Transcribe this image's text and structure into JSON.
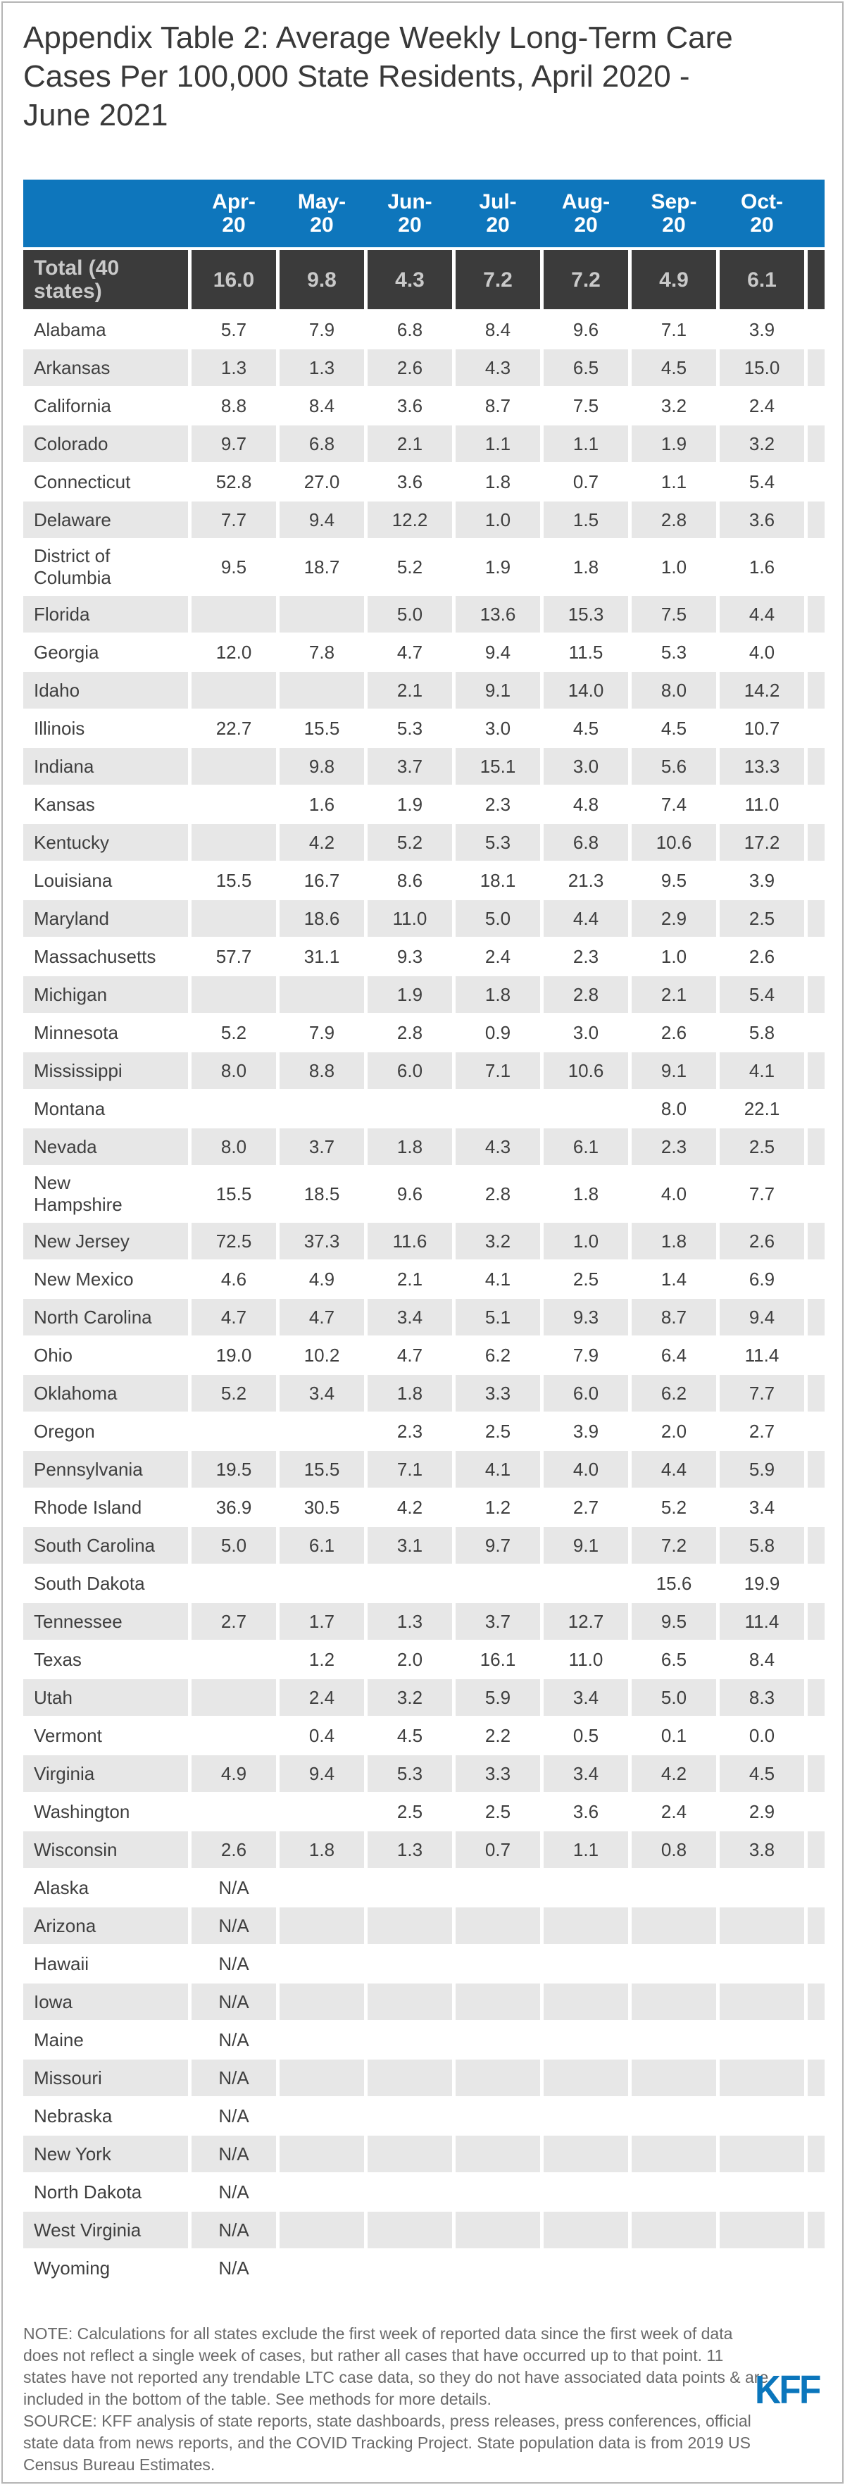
{
  "title": "Appendix Table 2: Average Weekly Long-Term Care\nCases Per 100,000 State Residents, April 2020 -\nJune 2021",
  "colors": {
    "header_bg": "#0E76BC",
    "header_text": "#FFFFFF",
    "total_bg": "#3B3B3B",
    "total_text": "#C9C9C9",
    "stripe": "#E7E7E7",
    "body_text": "#3F3F3F",
    "title_text": "#393939",
    "footer_text": "#6A6A6A",
    "logo_blue": "#0B76BC",
    "border": "#B5B5B5"
  },
  "chart_data": {
    "type": "table",
    "title": "Appendix Table 2: Average Weekly Long-Term Care Cases Per 100,000 State Residents, April 2020 - June 2021",
    "columns": [
      "Apr-20",
      "May-20",
      "Jun-20",
      "Jul-20",
      "Aug-20",
      "Sep-20",
      "Oct-20"
    ],
    "note_truncated_right": "an eighth month column is cut off at the right edge of the image",
    "total_row": {
      "label": "Total (40\nstates)",
      "values": [
        "16.0",
        "9.8",
        "4.3",
        "7.2",
        "7.2",
        "4.9",
        "6.1"
      ]
    },
    "rows": [
      {
        "state": "Alabama",
        "values": [
          "5.7",
          "7.9",
          "6.8",
          "8.4",
          "9.6",
          "7.1",
          "3.9"
        ]
      },
      {
        "state": "Arkansas",
        "values": [
          "1.3",
          "1.3",
          "2.6",
          "4.3",
          "6.5",
          "4.5",
          "15.0"
        ]
      },
      {
        "state": "California",
        "values": [
          "8.8",
          "8.4",
          "3.6",
          "8.7",
          "7.5",
          "3.2",
          "2.4"
        ]
      },
      {
        "state": "Colorado",
        "values": [
          "9.7",
          "6.8",
          "2.1",
          "1.1",
          "1.1",
          "1.9",
          "3.2"
        ]
      },
      {
        "state": "Connecticut",
        "values": [
          "52.8",
          "27.0",
          "3.6",
          "1.8",
          "0.7",
          "1.1",
          "5.4"
        ]
      },
      {
        "state": "Delaware",
        "values": [
          "7.7",
          "9.4",
          "12.2",
          "1.0",
          "1.5",
          "2.8",
          "3.6"
        ]
      },
      {
        "state": "District of\nColumbia",
        "values": [
          "9.5",
          "18.7",
          "5.2",
          "1.9",
          "1.8",
          "1.0",
          "1.6"
        ]
      },
      {
        "state": "Florida",
        "values": [
          "",
          "",
          "5.0",
          "13.6",
          "15.3",
          "7.5",
          "4.4"
        ]
      },
      {
        "state": "Georgia",
        "values": [
          "12.0",
          "7.8",
          "4.7",
          "9.4",
          "11.5",
          "5.3",
          "4.0"
        ]
      },
      {
        "state": "Idaho",
        "values": [
          "",
          "",
          "2.1",
          "9.1",
          "14.0",
          "8.0",
          "14.2"
        ]
      },
      {
        "state": "Illinois",
        "values": [
          "22.7",
          "15.5",
          "5.3",
          "3.0",
          "4.5",
          "4.5",
          "10.7"
        ]
      },
      {
        "state": "Indiana",
        "values": [
          "",
          "9.8",
          "3.7",
          "15.1",
          "3.0",
          "5.6",
          "13.3"
        ]
      },
      {
        "state": "Kansas",
        "values": [
          "",
          "1.6",
          "1.9",
          "2.3",
          "4.8",
          "7.4",
          "11.0"
        ]
      },
      {
        "state": "Kentucky",
        "values": [
          "",
          "4.2",
          "5.2",
          "5.3",
          "6.8",
          "10.6",
          "17.2"
        ]
      },
      {
        "state": "Louisiana",
        "values": [
          "15.5",
          "16.7",
          "8.6",
          "18.1",
          "21.3",
          "9.5",
          "3.9"
        ]
      },
      {
        "state": "Maryland",
        "values": [
          "",
          "18.6",
          "11.0",
          "5.0",
          "4.4",
          "2.9",
          "2.5"
        ]
      },
      {
        "state": "Massachusetts",
        "values": [
          "57.7",
          "31.1",
          "9.3",
          "2.4",
          "2.3",
          "1.0",
          "2.6"
        ]
      },
      {
        "state": "Michigan",
        "values": [
          "",
          "",
          "1.9",
          "1.8",
          "2.8",
          "2.1",
          "5.4"
        ]
      },
      {
        "state": "Minnesota",
        "values": [
          "5.2",
          "7.9",
          "2.8",
          "0.9",
          "3.0",
          "2.6",
          "5.8"
        ]
      },
      {
        "state": "Mississippi",
        "values": [
          "8.0",
          "8.8",
          "6.0",
          "7.1",
          "10.6",
          "9.1",
          "4.1"
        ]
      },
      {
        "state": "Montana",
        "values": [
          "",
          "",
          "",
          "",
          "",
          "8.0",
          "22.1"
        ]
      },
      {
        "state": "Nevada",
        "values": [
          "8.0",
          "3.7",
          "1.8",
          "4.3",
          "6.1",
          "2.3",
          "2.5"
        ]
      },
      {
        "state": "New\nHampshire",
        "values": [
          "15.5",
          "18.5",
          "9.6",
          "2.8",
          "1.8",
          "4.0",
          "7.7"
        ]
      },
      {
        "state": "New Jersey",
        "values": [
          "72.5",
          "37.3",
          "11.6",
          "3.2",
          "1.0",
          "1.8",
          "2.6"
        ]
      },
      {
        "state": "New Mexico",
        "values": [
          "4.6",
          "4.9",
          "2.1",
          "4.1",
          "2.5",
          "1.4",
          "6.9"
        ]
      },
      {
        "state": "North Carolina",
        "values": [
          "4.7",
          "4.7",
          "3.4",
          "5.1",
          "9.3",
          "8.7",
          "9.4"
        ]
      },
      {
        "state": "Ohio",
        "values": [
          "19.0",
          "10.2",
          "4.7",
          "6.2",
          "7.9",
          "6.4",
          "11.4"
        ]
      },
      {
        "state": "Oklahoma",
        "values": [
          "5.2",
          "3.4",
          "1.8",
          "3.3",
          "6.0",
          "6.2",
          "7.7"
        ]
      },
      {
        "state": "Oregon",
        "values": [
          "",
          "",
          "2.3",
          "2.5",
          "3.9",
          "2.0",
          "2.7"
        ]
      },
      {
        "state": "Pennsylvania",
        "values": [
          "19.5",
          "15.5",
          "7.1",
          "4.1",
          "4.0",
          "4.4",
          "5.9"
        ]
      },
      {
        "state": "Rhode Island",
        "values": [
          "36.9",
          "30.5",
          "4.2",
          "1.2",
          "2.7",
          "5.2",
          "3.4"
        ]
      },
      {
        "state": "South Carolina",
        "values": [
          "5.0",
          "6.1",
          "3.1",
          "9.7",
          "9.1",
          "7.2",
          "5.8"
        ]
      },
      {
        "state": "South Dakota",
        "values": [
          "",
          "",
          "",
          "",
          "",
          "15.6",
          "19.9"
        ]
      },
      {
        "state": "Tennessee",
        "values": [
          "2.7",
          "1.7",
          "1.3",
          "3.7",
          "12.7",
          "9.5",
          "11.4"
        ]
      },
      {
        "state": "Texas",
        "values": [
          "",
          "1.2",
          "2.0",
          "16.1",
          "11.0",
          "6.5",
          "8.4"
        ]
      },
      {
        "state": "Utah",
        "values": [
          "",
          "2.4",
          "3.2",
          "5.9",
          "3.4",
          "5.0",
          "8.3"
        ]
      },
      {
        "state": "Vermont",
        "values": [
          "",
          "0.4",
          "4.5",
          "2.2",
          "0.5",
          "0.1",
          "0.0"
        ]
      },
      {
        "state": "Virginia",
        "values": [
          "4.9",
          "9.4",
          "5.3",
          "3.3",
          "3.4",
          "4.2",
          "4.5"
        ]
      },
      {
        "state": "Washington",
        "values": [
          "",
          "",
          "2.5",
          "2.5",
          "3.6",
          "2.4",
          "2.9"
        ]
      },
      {
        "state": "Wisconsin",
        "values": [
          "2.6",
          "1.8",
          "1.3",
          "0.7",
          "1.1",
          "0.8",
          "3.8"
        ]
      },
      {
        "state": "Alaska",
        "values": [
          "N/A",
          "",
          "",
          "",
          "",
          "",
          ""
        ]
      },
      {
        "state": "Arizona",
        "values": [
          "N/A",
          "",
          "",
          "",
          "",
          "",
          ""
        ]
      },
      {
        "state": "Hawaii",
        "values": [
          "N/A",
          "",
          "",
          "",
          "",
          "",
          ""
        ]
      },
      {
        "state": "Iowa",
        "values": [
          "N/A",
          "",
          "",
          "",
          "",
          "",
          ""
        ]
      },
      {
        "state": "Maine",
        "values": [
          "N/A",
          "",
          "",
          "",
          "",
          "",
          ""
        ]
      },
      {
        "state": "Missouri",
        "values": [
          "N/A",
          "",
          "",
          "",
          "",
          "",
          ""
        ]
      },
      {
        "state": "Nebraska",
        "values": [
          "N/A",
          "",
          "",
          "",
          "",
          "",
          ""
        ]
      },
      {
        "state": "New York",
        "values": [
          "N/A",
          "",
          "",
          "",
          "",
          "",
          ""
        ]
      },
      {
        "state": "North Dakota",
        "values": [
          "N/A",
          "",
          "",
          "",
          "",
          "",
          ""
        ]
      },
      {
        "state": "West Virginia",
        "values": [
          "N/A",
          "",
          "",
          "",
          "",
          "",
          ""
        ]
      },
      {
        "state": "Wyoming",
        "values": [
          "N/A",
          "",
          "",
          "",
          "",
          "",
          ""
        ]
      }
    ]
  },
  "footer": {
    "note": "NOTE: Calculations for all states exclude the first week of reported data since the first week of data does not reflect a single week of cases, but rather all cases that have occurred up to that point. 11 states have not reported any trendable LTC case data, so they do not have associated data points & are included in the bottom of the table. See methods for more details.",
    "source": "SOURCE: KFF analysis of state reports, state dashboards, press releases, press conferences, official state data from news reports, and the COVID Tracking Project. State population data is from 2019 US Census Bureau Estimates.",
    "logo": "KFF"
  }
}
